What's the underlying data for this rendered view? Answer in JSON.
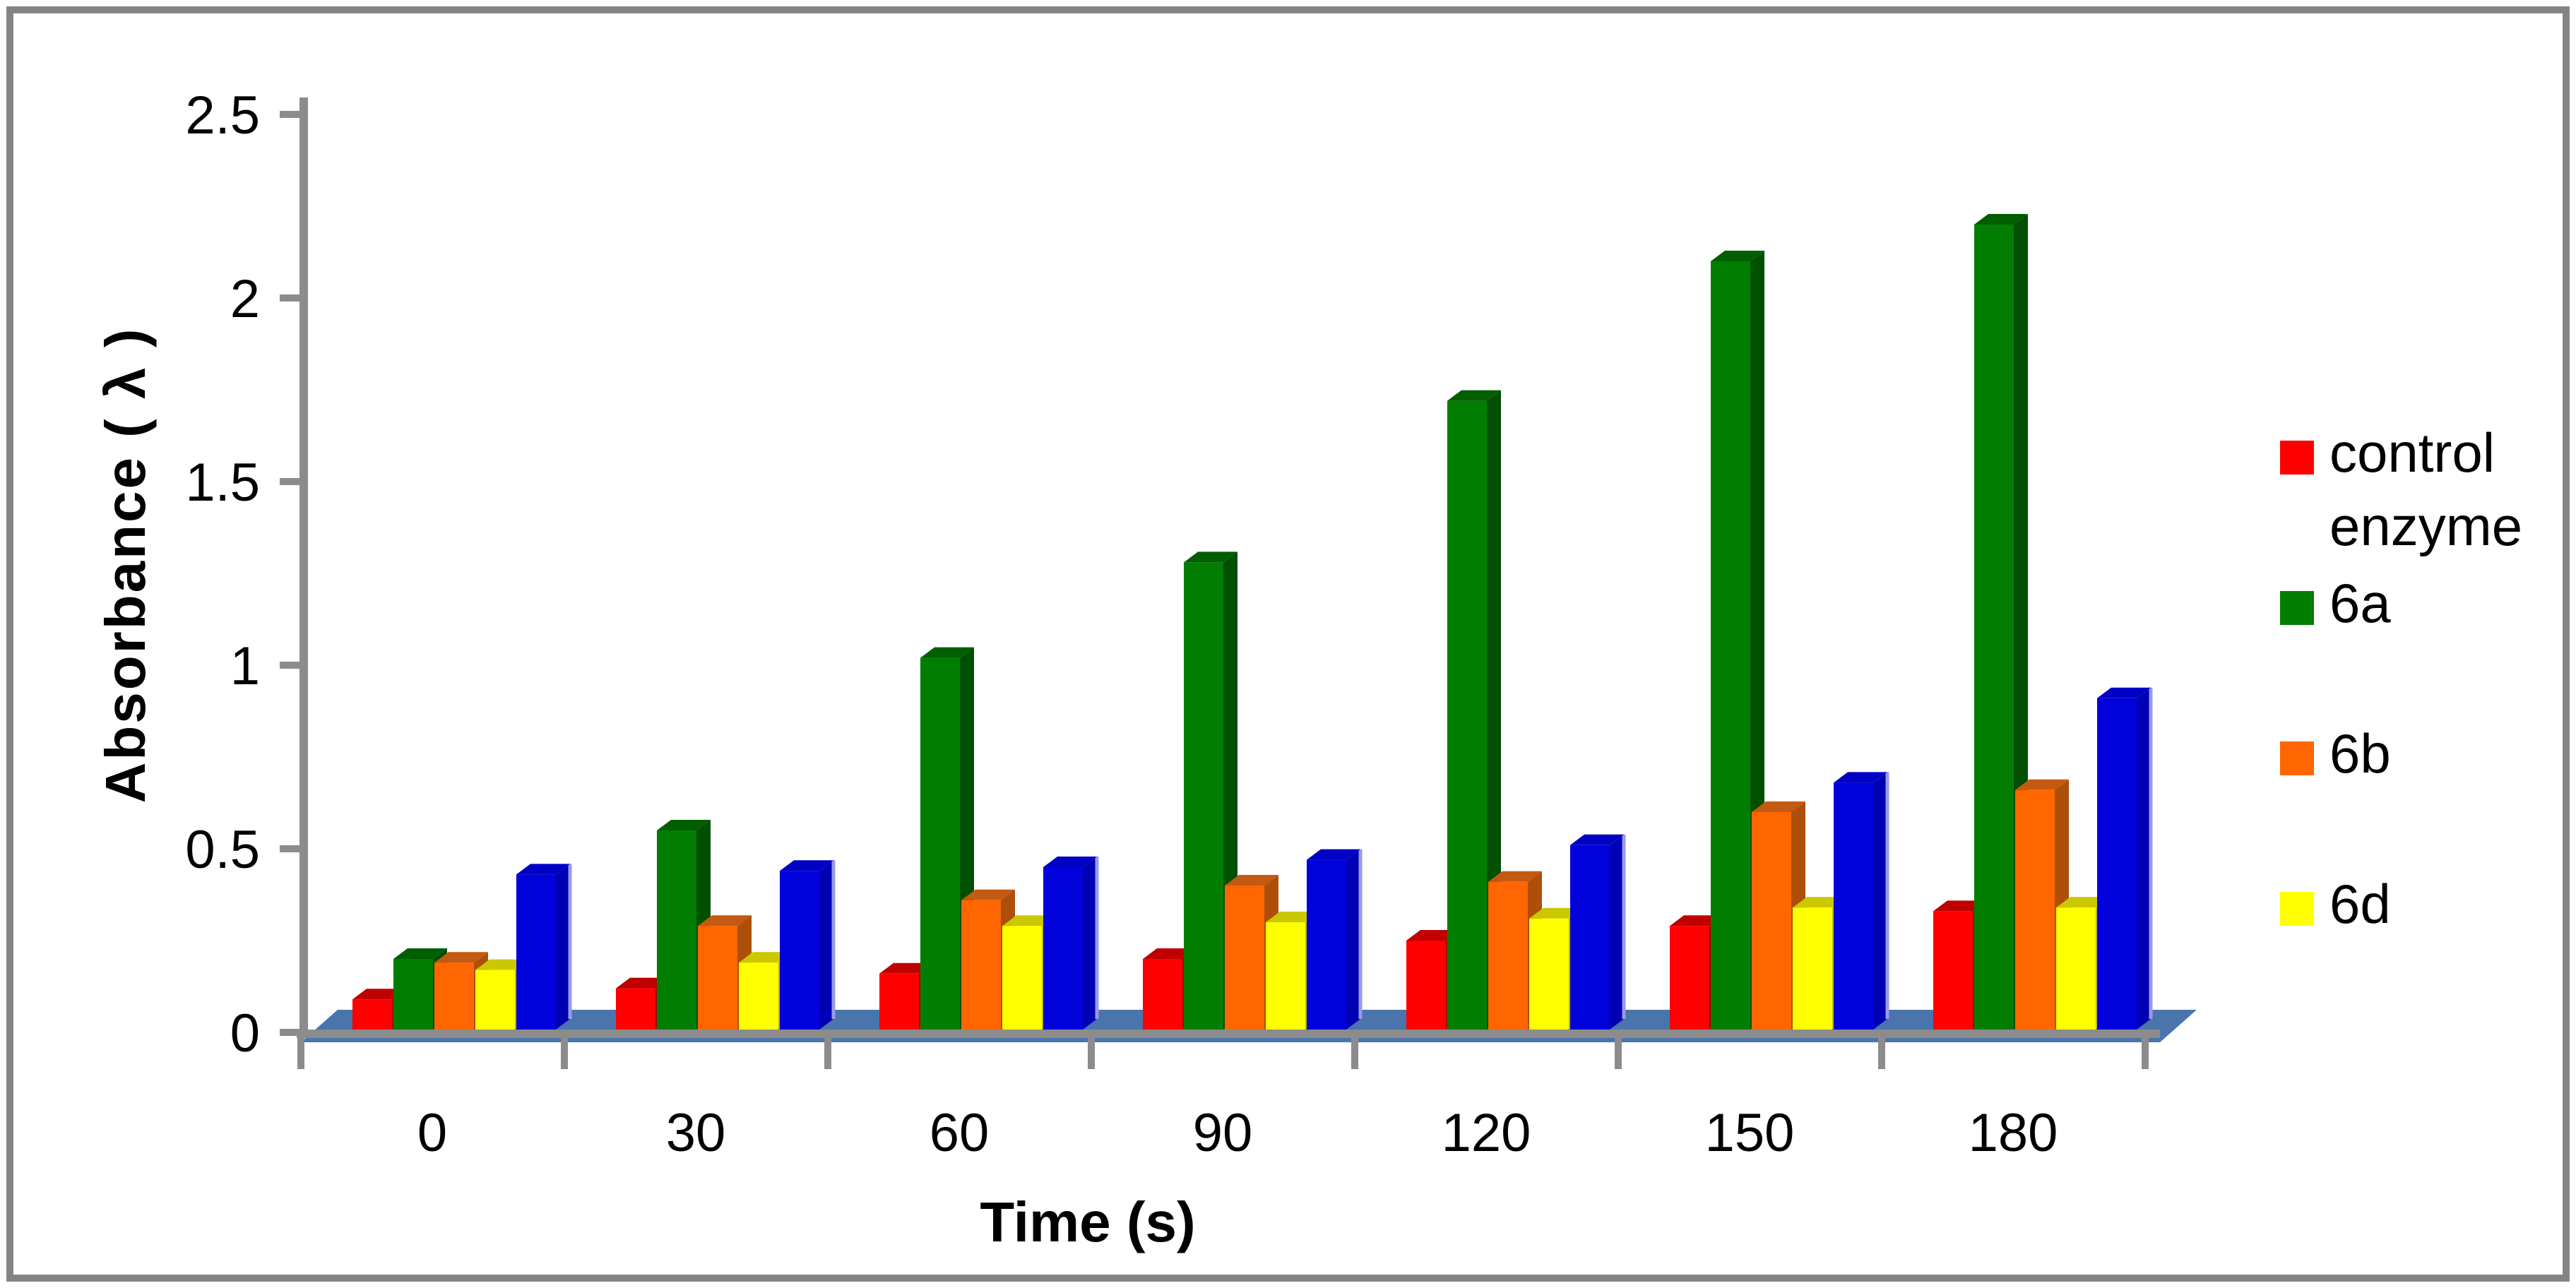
{
  "chart_data": {
    "type": "bar",
    "projection": "3d-clustered-column",
    "title": "",
    "xlabel": "Time (s)",
    "ylabel": "Absorbance ( λ )",
    "categories": [
      "0",
      "30",
      "60",
      "90",
      "120",
      "150",
      "180"
    ],
    "y_ticks": [
      "0",
      "0.5",
      "1",
      "1.5",
      "2",
      "2.5"
    ],
    "ylim": [
      0,
      2.5
    ],
    "grid": "off",
    "legend_position": "right",
    "series": [
      {
        "name": "control enzyme",
        "legend_lines": [
          "control",
          "enzyme"
        ],
        "in_legend": true,
        "color": "#FF0000",
        "color_top": "#C00000",
        "color_side": "#A80000",
        "values": [
          0.09,
          0.12,
          0.16,
          0.2,
          0.25,
          0.29,
          0.33
        ]
      },
      {
        "name": "6a",
        "legend_lines": [
          "6a"
        ],
        "in_legend": true,
        "color": "#017E01",
        "color_top": "#015E01",
        "color_side": "#014F01",
        "values": [
          0.2,
          0.55,
          1.02,
          1.28,
          1.72,
          2.1,
          2.2
        ]
      },
      {
        "name": "6b",
        "legend_lines": [
          "6b"
        ],
        "in_legend": true,
        "color": "#FF6600",
        "color_top": "#C45911",
        "color_side": "#AE4F09",
        "values": [
          0.19,
          0.29,
          0.36,
          0.4,
          0.41,
          0.6,
          0.66
        ]
      },
      {
        "name": "6d",
        "legend_lines": [
          "6d"
        ],
        "in_legend": true,
        "color": "#FFFF00",
        "color_top": "#CBC701",
        "color_side": "#BEBA01",
        "values": [
          0.17,
          0.19,
          0.29,
          0.3,
          0.31,
          0.34,
          0.34
        ]
      },
      {
        "name": "",
        "legend_lines": [],
        "in_legend": false,
        "color": "#0101DC",
        "color_top": "#0101C6",
        "color_side": "#0101B4",
        "edge_highlight": "#9A9AE8",
        "values": [
          0.43,
          0.44,
          0.45,
          0.47,
          0.51,
          0.68,
          0.91
        ]
      }
    ],
    "floor_color": "#4A74AC",
    "axis_color": "#8C8C8C",
    "frame_color": "#848484",
    "text_color": "#000000"
  }
}
